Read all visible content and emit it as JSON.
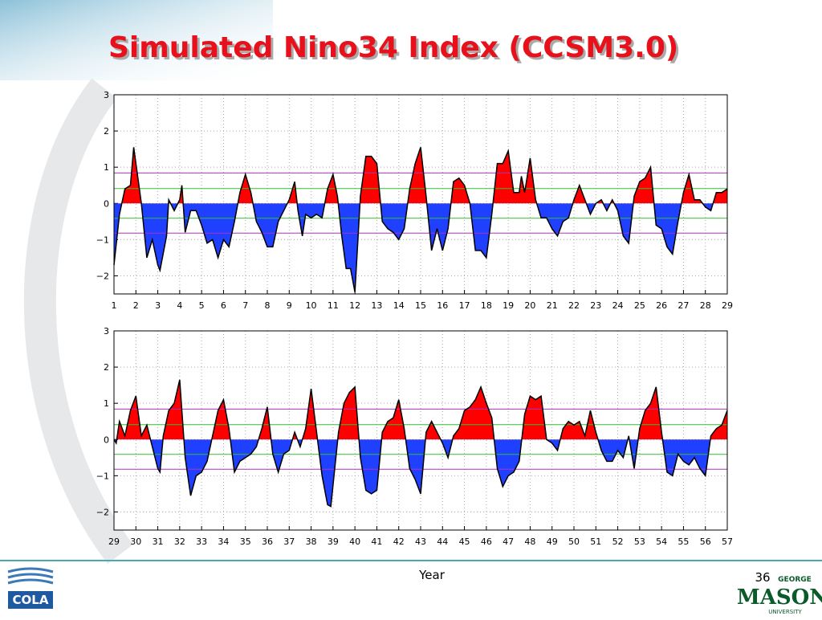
{
  "title": "Simulated Nino34 Index (CCSM3.0)",
  "page_number": "36",
  "logos": [
    "COLA",
    "GEORGE",
    "MASON",
    "UNIVERSITY"
  ],
  "chart_data": [
    {
      "type": "area",
      "pos_color": "#ff0000",
      "neg_color": "#2040ff",
      "grid": true,
      "xlim": [
        1,
        29
      ],
      "ylim": [
        -2.5,
        3
      ],
      "xticks": [
        1,
        2,
        3,
        4,
        5,
        6,
        7,
        8,
        9,
        10,
        11,
        12,
        13,
        14,
        15,
        16,
        17,
        18,
        19,
        20,
        21,
        22,
        23,
        24,
        25,
        26,
        27,
        28,
        29
      ],
      "yticks": [
        3,
        2,
        1,
        0,
        {
          "value": -1,
          "label": "−1"
        },
        {
          "value": -2,
          "label": "−2"
        }
      ],
      "hlines": [
        {
          "value": 0.84,
          "color": "#b030c0"
        },
        {
          "value": 0.41,
          "color": "#30c030"
        },
        {
          "value": -0.41,
          "color": "#30c030"
        },
        {
          "value": -0.82,
          "color": "#b030c0"
        }
      ],
      "x": [
        1,
        1.25,
        1.5,
        1.75,
        1.9,
        2.25,
        2.5,
        2.75,
        3,
        3.1,
        3.4,
        3.5,
        3.75,
        4,
        4.1,
        4.25,
        4.5,
        4.75,
        5,
        5.25,
        5.5,
        5.75,
        6,
        6.25,
        6.5,
        6.75,
        7,
        7.25,
        7.5,
        7.75,
        8,
        8.25,
        8.5,
        8.75,
        9,
        9.25,
        9.4,
        9.6,
        9.75,
        10,
        10.25,
        10.5,
        10.75,
        11,
        11.2,
        11.4,
        11.6,
        11.8,
        12,
        12.25,
        12.5,
        12.75,
        13,
        13.25,
        13.5,
        13.75,
        14,
        14.25,
        14.5,
        14.75,
        15,
        15.25,
        15.5,
        15.75,
        16,
        16.25,
        16.5,
        16.75,
        17,
        17.25,
        17.5,
        17.75,
        18,
        18.25,
        18.5,
        18.75,
        19,
        19.25,
        19.5,
        19.6,
        19.75,
        20,
        20.25,
        20.5,
        20.75,
        21,
        21.25,
        21.5,
        21.75,
        22,
        22.25,
        22.5,
        22.75,
        23,
        23.25,
        23.5,
        23.75,
        24,
        24.25,
        24.5,
        24.75,
        25,
        25.25,
        25.5,
        25.75,
        26,
        26.25,
        26.5,
        26.75,
        27,
        27.25,
        27.5,
        27.75,
        28,
        28.25,
        28.5,
        28.75,
        29
      ],
      "values": [
        -1.7,
        -0.3,
        0.4,
        0.5,
        1.55,
        0,
        -1.5,
        -1.0,
        -1.7,
        -1.85,
        -0.9,
        0.1,
        -0.2,
        0.1,
        0.5,
        -0.8,
        -0.2,
        -0.2,
        -0.6,
        -1.1,
        -1.0,
        -1.5,
        -1.0,
        -1.2,
        -0.5,
        0.3,
        0.8,
        0.3,
        -0.5,
        -0.8,
        -1.2,
        -1.2,
        -0.5,
        -0.2,
        0.1,
        0.6,
        -0.2,
        -0.9,
        -0.3,
        -0.4,
        -0.3,
        -0.4,
        0.4,
        0.8,
        0.2,
        -0.9,
        -1.8,
        -1.8,
        -2.45,
        0.2,
        1.3,
        1.3,
        1.1,
        -0.5,
        -0.7,
        -0.8,
        -1.0,
        -0.7,
        0.4,
        1.1,
        1.55,
        0.2,
        -1.3,
        -0.7,
        -1.3,
        -0.7,
        0.6,
        0.7,
        0.5,
        0,
        -1.3,
        -1.3,
        -1.5,
        -0.3,
        1.1,
        1.1,
        1.45,
        0.3,
        0.3,
        0.75,
        0.3,
        1.25,
        0.1,
        -0.4,
        -0.4,
        -0.7,
        -0.9,
        -0.5,
        -0.4,
        0.1,
        0.5,
        0.1,
        -0.3,
        0,
        0.1,
        -0.2,
        0.1,
        -0.2,
        -0.9,
        -1.1,
        0.2,
        0.6,
        0.7,
        1.0,
        -0.6,
        -0.7,
        -1.2,
        -1.4,
        -0.5,
        0.3,
        0.8,
        0.1,
        0.1,
        -0.1,
        -0.2,
        0.3,
        0.3,
        0.4
      ]
    },
    {
      "type": "area",
      "pos_color": "#ff0000",
      "neg_color": "#2040ff",
      "grid": true,
      "xlabel": "Year",
      "xlim": [
        29,
        57
      ],
      "ylim": [
        -2.5,
        3
      ],
      "xticks": [
        29,
        30,
        31,
        32,
        33,
        34,
        35,
        36,
        37,
        38,
        39,
        40,
        41,
        42,
        43,
        44,
        45,
        46,
        47,
        48,
        49,
        50,
        51,
        52,
        53,
        54,
        55,
        56,
        57
      ],
      "yticks": [
        3,
        2,
        1,
        0,
        {
          "value": -1,
          "label": "−1"
        },
        {
          "value": -2,
          "label": "−2"
        }
      ],
      "hlines": [
        {
          "value": 0.84,
          "color": "#b030c0"
        },
        {
          "value": 0.41,
          "color": "#30c030"
        },
        {
          "value": -0.41,
          "color": "#30c030"
        },
        {
          "value": -0.82,
          "color": "#b030c0"
        }
      ],
      "x": [
        29,
        29.1,
        29.25,
        29.5,
        29.75,
        30,
        30.25,
        30.5,
        30.75,
        31,
        31.1,
        31.25,
        31.5,
        31.75,
        32,
        32.25,
        32.5,
        32.75,
        33,
        33.25,
        33.5,
        33.75,
        34,
        34.25,
        34.5,
        34.75,
        35,
        35.25,
        35.5,
        35.75,
        36,
        36.25,
        36.5,
        36.75,
        37,
        37.25,
        37.5,
        37.75,
        38,
        38.25,
        38.5,
        38.75,
        38.9,
        39.25,
        39.5,
        39.75,
        40,
        40.25,
        40.5,
        40.75,
        41,
        41.25,
        41.5,
        41.75,
        42,
        42.25,
        42.5,
        42.75,
        43,
        43.25,
        43.5,
        43.75,
        44,
        44.25,
        44.5,
        44.75,
        45,
        45.25,
        45.5,
        45.75,
        46,
        46.25,
        46.5,
        46.75,
        47,
        47.25,
        47.5,
        47.75,
        48,
        48.25,
        48.5,
        48.75,
        49,
        49.25,
        49.5,
        49.75,
        50,
        50.25,
        50.5,
        50.75,
        51,
        51.25,
        51.5,
        51.75,
        52,
        52.25,
        52.5,
        52.75,
        53,
        53.25,
        53.5,
        53.75,
        54,
        54.25,
        54.5,
        54.75,
        55,
        55.25,
        55.5,
        55.75,
        56,
        56.25,
        56.5,
        56.75,
        57
      ],
      "values": [
        0,
        -0.1,
        0.5,
        0.1,
        0.8,
        1.2,
        0.1,
        0.4,
        -0.2,
        -0.8,
        -0.9,
        0.1,
        0.8,
        1.0,
        1.65,
        -0.5,
        -1.55,
        -1.0,
        -0.9,
        -0.6,
        0.1,
        0.8,
        1.1,
        0.3,
        -0.9,
        -0.6,
        -0.5,
        -0.4,
        -0.2,
        0.3,
        0.9,
        -0.4,
        -0.9,
        -0.4,
        -0.3,
        0.2,
        -0.2,
        0.3,
        1.4,
        0.2,
        -1.0,
        -1.8,
        -1.85,
        0.2,
        1.0,
        1.3,
        1.45,
        -0.5,
        -1.4,
        -1.5,
        -1.4,
        0.2,
        0.5,
        0.6,
        1.1,
        0.3,
        -0.8,
        -1.1,
        -1.5,
        0.2,
        0.5,
        0.2,
        -0.1,
        -0.5,
        0.1,
        0.3,
        0.8,
        0.9,
        1.1,
        1.45,
        1.0,
        0.6,
        -0.8,
        -1.3,
        -1.0,
        -0.9,
        -0.6,
        0.7,
        1.2,
        1.1,
        1.2,
        0,
        -0.1,
        -0.3,
        0.3,
        0.5,
        0.4,
        0.5,
        0.1,
        0.8,
        0.2,
        -0.3,
        -0.6,
        -0.6,
        -0.3,
        -0.5,
        0.1,
        -0.8,
        0.3,
        0.8,
        1.0,
        1.45,
        0.2,
        -0.9,
        -1.0,
        -0.4,
        -0.6,
        -0.7,
        -0.5,
        -0.8,
        -1.0,
        0.1,
        0.3,
        0.4,
        0.8
      ]
    }
  ]
}
